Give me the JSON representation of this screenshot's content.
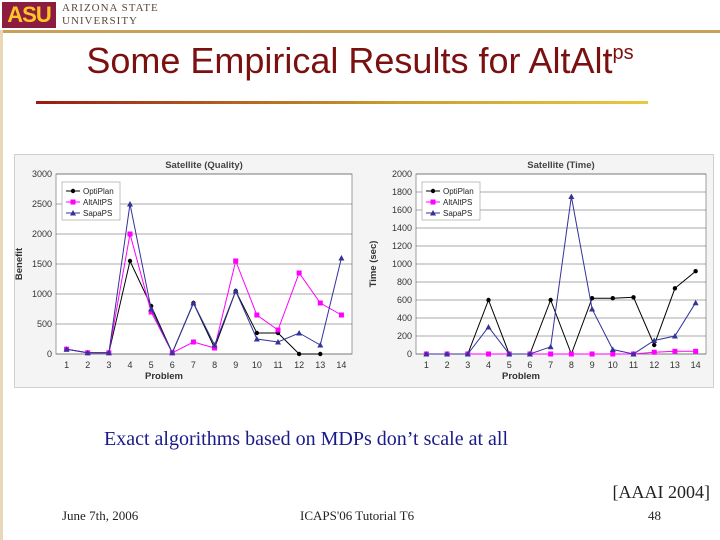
{
  "header": {
    "logo_mark": "ASU",
    "logo_line1": "ARIZONA STATE",
    "logo_line2": "UNIVERSITY"
  },
  "title": {
    "main": "Some Empirical Results for AltAlt",
    "sup": "ps"
  },
  "caption": "Exact algorithms based on MDPs don’t scale at all",
  "citation": "[AAAI 2004]",
  "footer": {
    "date": "June 7th, 2006",
    "center": "ICAPS'06 Tutorial T6",
    "page": "48"
  },
  "chart_data": [
    {
      "type": "line",
      "title": "Satellite (Quality)",
      "xlabel": "Problem",
      "ylabel": "Benefit",
      "x": [
        1,
        2,
        3,
        4,
        5,
        6,
        7,
        8,
        9,
        10,
        11,
        12,
        13,
        14
      ],
      "ylim": [
        0,
        3000
      ],
      "yticks": [
        0,
        500,
        1000,
        1500,
        2000,
        2500,
        3000
      ],
      "grid": true,
      "legend": "top-left",
      "series": [
        {
          "name": "OptiPlan",
          "color": "#000000",
          "marker": "circle",
          "values": [
            80,
            20,
            20,
            1550,
            800,
            20,
            850,
            100,
            1050,
            350,
            350,
            0,
            0,
            null
          ]
        },
        {
          "name": "AltAltPS",
          "color": "#ff00ff",
          "marker": "square",
          "values": [
            80,
            20,
            20,
            2000,
            700,
            20,
            200,
            100,
            1550,
            650,
            400,
            1350,
            850,
            650
          ]
        },
        {
          "name": "SapaPS",
          "color": "#333399",
          "marker": "triangle",
          "values": [
            80,
            20,
            20,
            2500,
            750,
            20,
            850,
            150,
            1050,
            250,
            200,
            350,
            150,
            1600
          ]
        }
      ]
    },
    {
      "type": "line",
      "title": "Satellite (Time)",
      "xlabel": "Problem",
      "ylabel": "Time (sec)",
      "x": [
        1,
        2,
        3,
        4,
        5,
        6,
        7,
        8,
        9,
        10,
        11,
        12,
        13,
        14
      ],
      "ylim": [
        0,
        2000
      ],
      "yticks": [
        0,
        200,
        400,
        600,
        800,
        1000,
        1200,
        1400,
        1600,
        1800,
        2000
      ],
      "grid": true,
      "legend": "top-left",
      "series": [
        {
          "name": "OptiPlan",
          "color": "#000000",
          "marker": "circle",
          "values": [
            0,
            0,
            0,
            600,
            0,
            0,
            600,
            0,
            620,
            620,
            630,
            100,
            730,
            920
          ]
        },
        {
          "name": "AltAltPS",
          "color": "#ff00ff",
          "marker": "square",
          "values": [
            0,
            0,
            0,
            0,
            0,
            0,
            0,
            0,
            0,
            0,
            0,
            20,
            30,
            30
          ]
        },
        {
          "name": "SapaPS",
          "color": "#333399",
          "marker": "triangle",
          "values": [
            0,
            0,
            0,
            300,
            0,
            0,
            80,
            1750,
            500,
            50,
            0,
            150,
            200,
            570
          ]
        }
      ]
    }
  ]
}
